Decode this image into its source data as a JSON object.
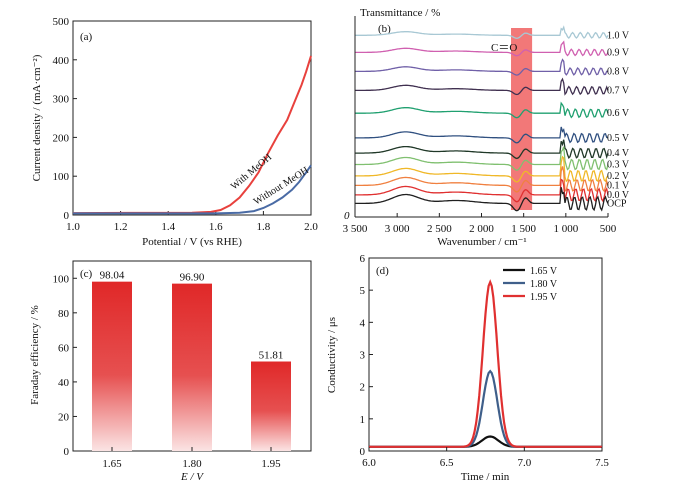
{
  "chart_data": [
    {
      "id": "a",
      "type": "line",
      "panel_label": "(a)",
      "xlabel": "Potential / V (vs RHE)",
      "ylabel": "Current density / (mA·cm⁻²)",
      "xlim": [
        1.0,
        2.0
      ],
      "ylim": [
        0,
        500
      ],
      "xticks": [
        1.0,
        1.2,
        1.4,
        1.6,
        1.8,
        2.0
      ],
      "xtick_labels": [
        "1.0",
        "1.2",
        "1.4",
        "1.6",
        "1.8",
        "2.0"
      ],
      "yticks": [
        0,
        100,
        200,
        300,
        400,
        500
      ],
      "ytick_labels": [
        "0",
        "100",
        "200",
        "300",
        "400",
        "500"
      ],
      "series": [
        {
          "name": "With MeOH",
          "color": "#e8413d",
          "x": [
            1.0,
            1.5,
            1.58,
            1.62,
            1.66,
            1.7,
            1.74,
            1.78,
            1.82,
            1.86,
            1.9,
            1.93,
            1.96,
            1.98,
            2.0
          ],
          "y": [
            5,
            6,
            8,
            13,
            25,
            45,
            75,
            110,
            160,
            205,
            245,
            290,
            335,
            370,
            410
          ]
        },
        {
          "name": "Without MeOH",
          "color": "#4a6ba5",
          "x": [
            1.0,
            1.6,
            1.7,
            1.76,
            1.8,
            1.84,
            1.88,
            1.92,
            1.95,
            1.98,
            2.0
          ],
          "y": [
            4,
            4,
            6,
            10,
            18,
            30,
            45,
            65,
            85,
            110,
            128
          ]
        }
      ],
      "annotations": [
        "With MeOH",
        "Without MeOH"
      ]
    },
    {
      "id": "b",
      "type": "line",
      "panel_label": "(b)",
      "xlabel": "Wavenumber / cm⁻¹",
      "ylabel": "Transmittance / %",
      "y_axis_origin_label": "0",
      "xlim": [
        3500,
        500
      ],
      "xticks": [
        3500,
        3000,
        2500,
        2000,
        1500,
        1000,
        500
      ],
      "xtick_labels": [
        "3 500",
        "3 000",
        "2 500",
        "2 000",
        "1 500",
        "1 000",
        "500"
      ],
      "highlight_band": {
        "from": 1650,
        "to": 1400,
        "color": "#f06060"
      },
      "band_label": "C＝O",
      "series": [
        {
          "name": "1.0 V",
          "color": "#a8c8d4",
          "baseline": 0.93
        },
        {
          "name": "0.9 V",
          "color": "#d060b0",
          "baseline": 0.84
        },
        {
          "name": "0.8 V",
          "color": "#7060a8",
          "baseline": 0.74
        },
        {
          "name": "0.7 V",
          "color": "#403050",
          "baseline": 0.64
        },
        {
          "name": "0.6 V",
          "color": "#20a070",
          "baseline": 0.52
        },
        {
          "name": "0.5 V",
          "color": "#305080",
          "baseline": 0.39
        },
        {
          "name": "0.4 V",
          "color": "#203828",
          "baseline": 0.31
        },
        {
          "name": "0.3 V",
          "color": "#80c070",
          "baseline": 0.25
        },
        {
          "name": "0.2 V",
          "color": "#f0b828",
          "baseline": 0.19
        },
        {
          "name": "0.1 V",
          "color": "#f08040",
          "baseline": 0.14
        },
        {
          "name": "0.0 V",
          "color": "#e03030",
          "baseline": 0.09
        },
        {
          "name": "OCP",
          "color": "#202020",
          "baseline": 0.045
        }
      ]
    },
    {
      "id": "c",
      "type": "bar",
      "panel_label": "(c)",
      "xlabel": "E / V",
      "ylabel": "Faraday efficiency / %",
      "categories": [
        "1.65",
        "1.80",
        "1.95"
      ],
      "values": [
        98.04,
        96.9,
        51.81
      ],
      "value_labels": [
        "98.04",
        "96.90",
        "51.81"
      ],
      "ylim": [
        0,
        110
      ],
      "yticks": [
        0,
        20,
        40,
        60,
        80,
        100
      ],
      "ytick_labels": [
        "0",
        "20",
        "40",
        "60",
        "80",
        "100"
      ],
      "bar_color": "#e02828"
    },
    {
      "id": "d",
      "type": "line",
      "panel_label": "(d)",
      "xlabel": "Time / min",
      "ylabel": "Conductivity / μs",
      "xlim": [
        6.0,
        7.5
      ],
      "ylim": [
        0,
        6
      ],
      "xticks": [
        6.0,
        6.5,
        7.0,
        7.5
      ],
      "xtick_labels": [
        "6.0",
        "6.5",
        "7.0",
        "7.5"
      ],
      "yticks": [
        0,
        1,
        2,
        3,
        4,
        5,
        6
      ],
      "ytick_labels": [
        "0",
        "1",
        "2",
        "3",
        "4",
        "5",
        "6"
      ],
      "legend_position": "top-right",
      "series": [
        {
          "name": "1.65 V",
          "color": "#111111",
          "peak_x": 6.78,
          "peak_y": 0.45,
          "width": 0.075,
          "baseline": 0.13
        },
        {
          "name": "1.80 V",
          "color": "#3f5f8a",
          "peak_x": 6.78,
          "peak_y": 2.48,
          "width": 0.065,
          "baseline": 0.13
        },
        {
          "name": "1.95 V",
          "color": "#e03030",
          "peak_x": 6.78,
          "peak_y": 5.25,
          "width": 0.065,
          "baseline": 0.13
        }
      ]
    }
  ]
}
